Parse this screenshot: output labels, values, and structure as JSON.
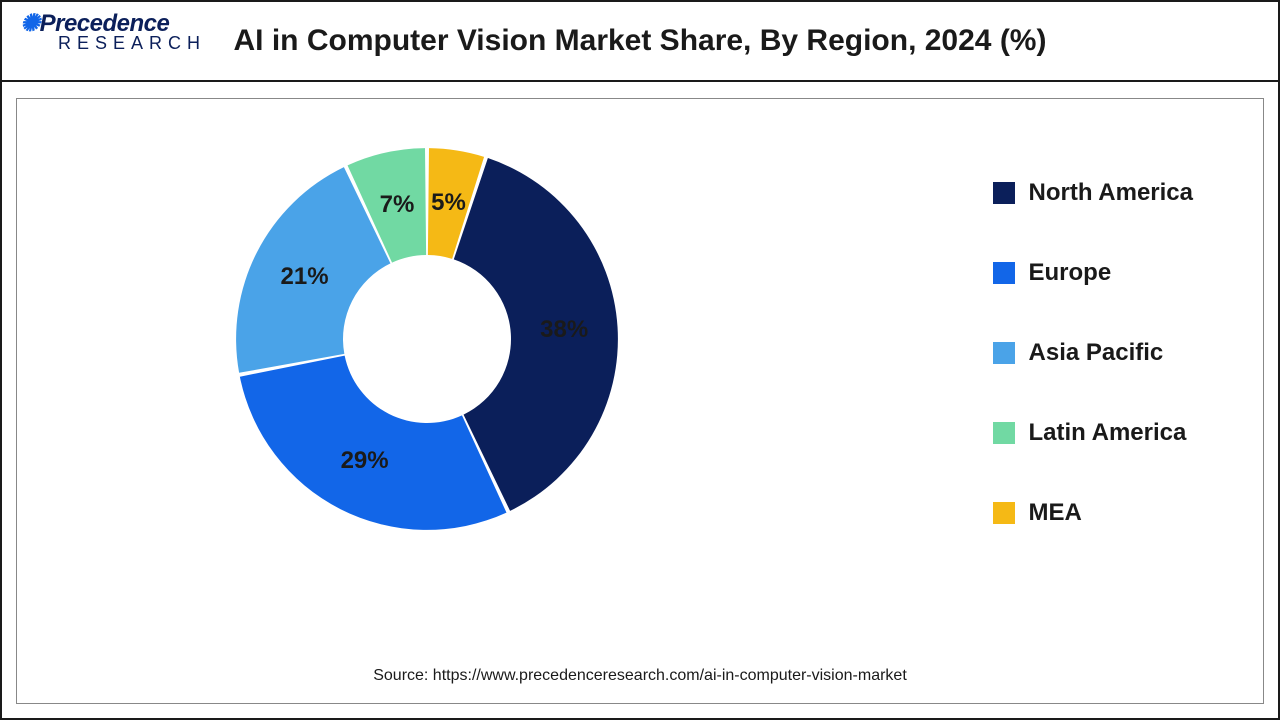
{
  "brand": {
    "name_main": "Precedence",
    "name_sub": "RESEARCH"
  },
  "title": "AI in Computer Vision Market Share, By Region, 2024 (%)",
  "source": "Source: https://www.precedenceresearch.com/ai-in-computer-vision-market",
  "chart": {
    "type": "donut",
    "start_angle_deg": -72,
    "inner_radius_pct": 44,
    "outer_radius_pct": 100,
    "background_color": "#ffffff",
    "slice_gap_deg": 1.2,
    "label_fontsize": 24,
    "label_fontweight": 800,
    "label_radius_pct": 72,
    "segments": [
      {
        "label": "North America",
        "value": 38,
        "display": "38%",
        "color": "#0b1f5a"
      },
      {
        "label": "Europe",
        "value": 29,
        "display": "29%",
        "color": "#1266e8"
      },
      {
        "label": "Asia Pacific",
        "value": 21,
        "display": "21%",
        "color": "#4aa3e8"
      },
      {
        "label": "Latin America",
        "value": 7,
        "display": "7%",
        "color": "#71d9a3"
      },
      {
        "label": "MEA",
        "value": 5,
        "display": "5%",
        "color": "#f5b915"
      }
    ]
  },
  "legend": {
    "fontsize": 24,
    "fontweight": 800,
    "swatch_size": 22,
    "gap": 52
  }
}
